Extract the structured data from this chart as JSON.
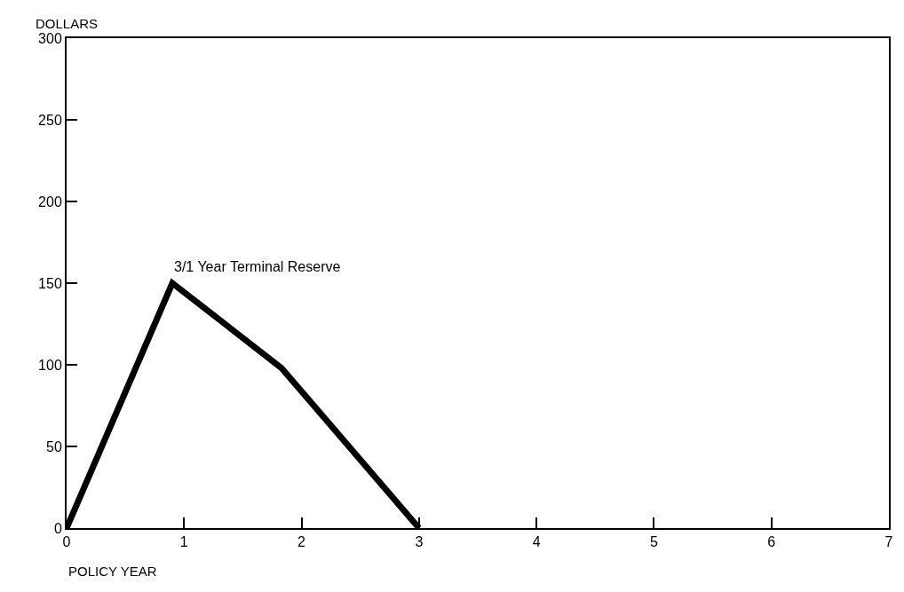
{
  "chart_data": {
    "type": "line",
    "xlabel": "POLICY YEAR",
    "ylabel": "DOLLARS",
    "x": [
      0,
      0.9,
      1.83,
      3
    ],
    "series": [
      {
        "color": "#000000",
        "values": [
          0,
          150,
          98,
          0
        ]
      }
    ],
    "annotations": [
      {
        "text": "3/1 Year Terminal Reserve",
        "x": 0.9,
        "y": 150
      }
    ],
    "xlim": [
      0,
      7
    ],
    "xticks": [
      0,
      1,
      2,
      3,
      4,
      5,
      6,
      7
    ],
    "ylim": [
      0,
      300
    ],
    "yticks": [
      0,
      50,
      100,
      150,
      200,
      250,
      300
    ],
    "marker": "none",
    "line_style": "solid"
  }
}
